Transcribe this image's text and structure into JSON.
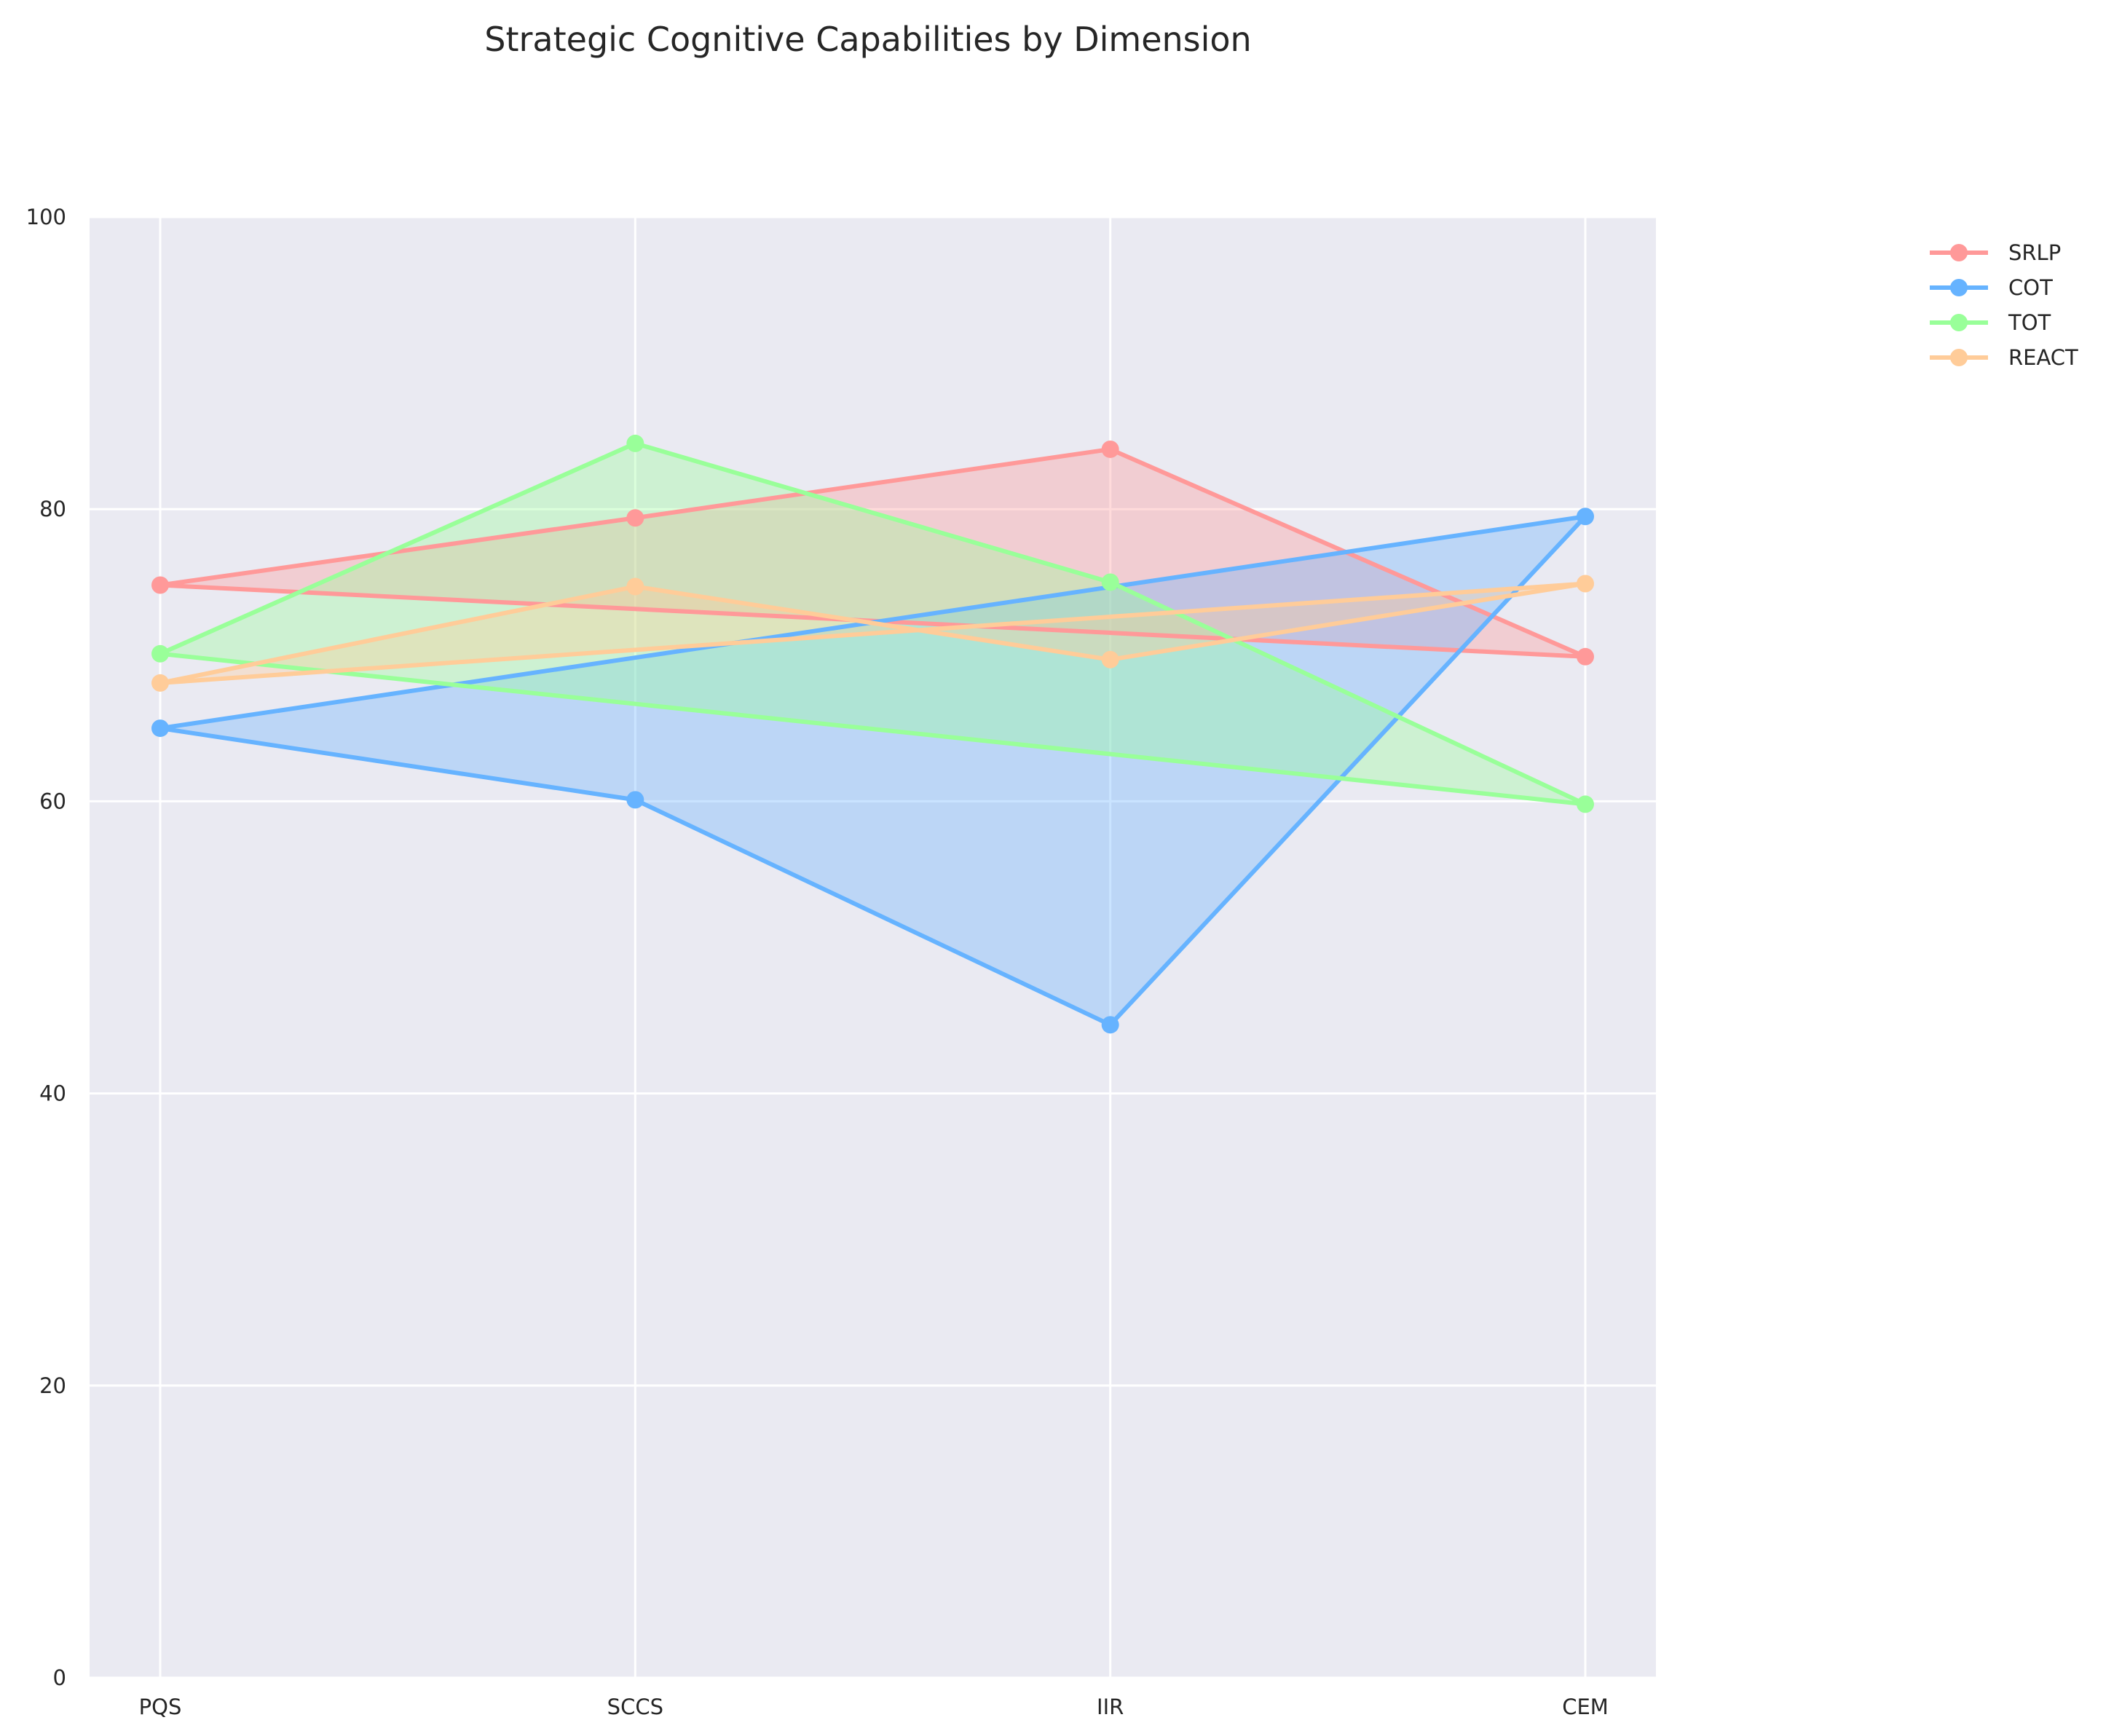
{
  "chart_data": {
    "type": "line",
    "title": "Strategic Cognitive Capabilities by Dimension",
    "categories": [
      "PQS",
      "SCCS",
      "IIR",
      "CEM"
    ],
    "ylim": [
      0,
      100
    ],
    "yticks": [
      0,
      20,
      40,
      60,
      80,
      100
    ],
    "grid": true,
    "legend_position": "top-right",
    "note": "Radar-style closed polygons drawn on cartesian axes; each series closes from CEM back to PQS and is filled.",
    "series": [
      {
        "name": "SRLP",
        "values": [
          74.8,
          79.4,
          84.1,
          69.9
        ],
        "color": "#ff9999"
      },
      {
        "name": "COT",
        "values": [
          65.0,
          60.1,
          44.7,
          79.5
        ],
        "color": "#66b3ff"
      },
      {
        "name": "TOT",
        "values": [
          70.1,
          84.5,
          75.0,
          59.8
        ],
        "color": "#99ff99"
      },
      {
        "name": "REACT",
        "values": [
          68.1,
          74.7,
          69.7,
          74.9
        ],
        "color": "#ffcc99"
      }
    ]
  },
  "style": {
    "plot_background": "#eaeaf2",
    "grid_color": "#ffffff",
    "text_color": "#262626"
  }
}
